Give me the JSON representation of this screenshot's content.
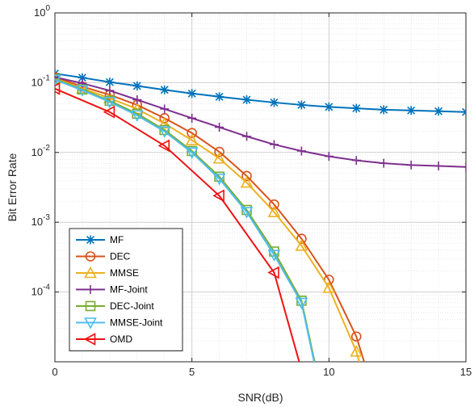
{
  "chart_data": {
    "type": "line",
    "xlabel": "SNR(dB)",
    "ylabel": "Bit Error Rate",
    "xlim": [
      0,
      15
    ],
    "ylim": [
      1e-05,
      1
    ],
    "yscale": "log",
    "grid": true,
    "minor_grid": true,
    "legend_position": "bottom-left",
    "x_ticks": [
      "0",
      "5",
      "10",
      "15"
    ],
    "y_ticks": [
      {
        "base": "10",
        "exp": "0",
        "value": 1
      },
      {
        "base": "10",
        "exp": "-1",
        "value": 0.1
      },
      {
        "base": "10",
        "exp": "-2",
        "value": 0.01
      },
      {
        "base": "10",
        "exp": "-3",
        "value": 0.001
      },
      {
        "base": "10",
        "exp": "-4",
        "value": 0.0001
      }
    ],
    "series": [
      {
        "name": "MF",
        "color": "#0072BD",
        "marker": "asterisk",
        "x": [
          0,
          1,
          2,
          3,
          4,
          5,
          6,
          7,
          8,
          9,
          10,
          11,
          12,
          13,
          14,
          15
        ],
        "y": [
          0.135,
          0.118,
          0.102,
          0.09,
          0.079,
          0.07,
          0.063,
          0.057,
          0.052,
          0.048,
          0.045,
          0.043,
          0.041,
          0.04,
          0.039,
          0.038
        ]
      },
      {
        "name": "DEC",
        "color": "#D95319",
        "marker": "circle",
        "x": [
          0,
          1,
          2,
          3,
          4,
          5,
          6,
          7,
          8,
          9,
          10,
          11,
          11.6
        ],
        "y": [
          0.12,
          0.088,
          0.067,
          0.048,
          0.031,
          0.019,
          0.0102,
          0.0046,
          0.0018,
          0.00058,
          0.00015,
          2.3e-05,
          4e-06
        ]
      },
      {
        "name": "MMSE",
        "color": "#EDB120",
        "marker": "triangle-up",
        "x": [
          0,
          1,
          2,
          3,
          4,
          5,
          6,
          7,
          8,
          9,
          10,
          11,
          11.5
        ],
        "y": [
          0.115,
          0.083,
          0.06,
          0.042,
          0.026,
          0.015,
          0.0082,
          0.0037,
          0.0014,
          0.00046,
          0.000115,
          1.4e-05,
          3e-06
        ]
      },
      {
        "name": "MF-Joint",
        "color": "#7E2F8E",
        "marker": "plus",
        "x": [
          0,
          1,
          2,
          3,
          4,
          5,
          6,
          7,
          8,
          9,
          10,
          11,
          12,
          13,
          14,
          15
        ],
        "y": [
          0.12,
          0.098,
          0.077,
          0.057,
          0.042,
          0.031,
          0.023,
          0.017,
          0.013,
          0.0105,
          0.0088,
          0.0077,
          0.007,
          0.0066,
          0.0064,
          0.0062
        ]
      },
      {
        "name": "DEC-Joint",
        "color": "#77AC30",
        "marker": "square",
        "x": [
          0,
          1,
          2,
          3,
          4,
          5,
          6,
          7,
          8,
          9,
          9.6
        ],
        "y": [
          0.113,
          0.08,
          0.055,
          0.036,
          0.021,
          0.0105,
          0.0045,
          0.0015,
          0.00038,
          7.5e-05,
          6e-06
        ]
      },
      {
        "name": "MMSE-Joint",
        "color": "#4DBEEE",
        "marker": "triangle-down",
        "x": [
          0,
          1,
          2,
          3,
          4,
          5,
          6,
          7,
          8,
          9,
          9.6
        ],
        "y": [
          0.11,
          0.078,
          0.053,
          0.034,
          0.02,
          0.01,
          0.0042,
          0.0014,
          0.00034,
          7e-05,
          5.5e-06
        ]
      },
      {
        "name": "OMD",
        "color": "#EE1111",
        "marker": "triangle-left",
        "x": [
          0,
          2,
          4,
          6,
          8,
          9.2
        ],
        "y": [
          0.082,
          0.038,
          0.0125,
          0.0024,
          0.00019,
          4e-06
        ]
      }
    ]
  }
}
